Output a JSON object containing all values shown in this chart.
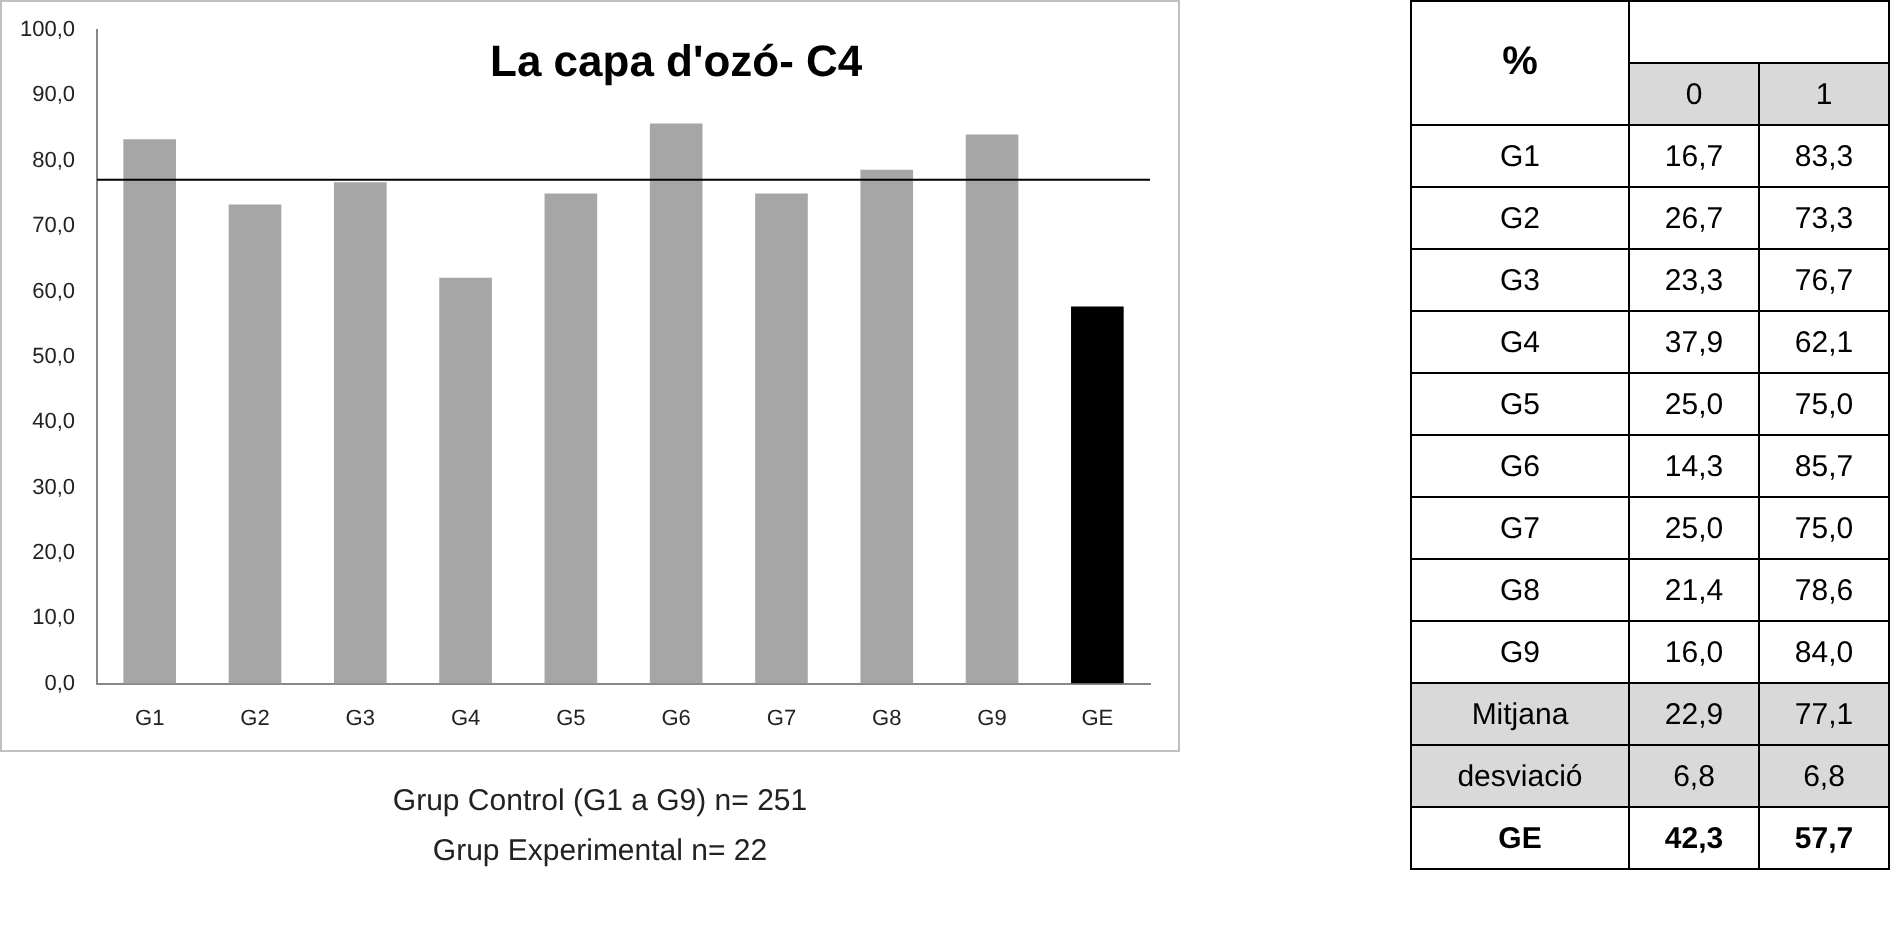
{
  "chart_data": [
    {
      "type": "bar",
      "title": "La capa d'ozó- C4",
      "categories": [
        "G1",
        "G2",
        "G3",
        "G4",
        "G5",
        "G6",
        "G7",
        "G8",
        "G9",
        "GE"
      ],
      "values": [
        83.3,
        73.3,
        76.7,
        62.1,
        75.0,
        85.7,
        75.0,
        78.6,
        84.0,
        57.7
      ],
      "colors": [
        "#a6a6a6",
        "#a6a6a6",
        "#a6a6a6",
        "#a6a6a6",
        "#a6a6a6",
        "#a6a6a6",
        "#a6a6a6",
        "#a6a6a6",
        "#a6a6a6",
        "#000000"
      ],
      "ylim": [
        0,
        100
      ],
      "yticks": [
        {
          "value": 0,
          "label": "0,0"
        },
        {
          "value": 10,
          "label": "10,0"
        },
        {
          "value": 20,
          "label": "20,0"
        },
        {
          "value": 30,
          "label": "30,0"
        },
        {
          "value": 40,
          "label": "40,0"
        },
        {
          "value": 50,
          "label": "50,0"
        },
        {
          "value": 60,
          "label": "60,0"
        },
        {
          "value": 70,
          "label": "70,0"
        },
        {
          "value": 80,
          "label": "80,0"
        },
        {
          "value": 90,
          "label": "90,0"
        },
        {
          "value": 100,
          "label": "100,0"
        }
      ],
      "ref_lines": [
        {
          "axis": "y",
          "value": 77.1,
          "color": "#000000"
        }
      ],
      "legend": false,
      "annotations": [
        "Grup Control (G1 a G9)  n= 251",
        "Grup Experimental   n= 22"
      ]
    },
    {
      "type": "other",
      "title": "%",
      "categories": [
        "G1",
        "G2",
        "G3",
        "G4",
        "G5",
        "G6",
        "G7",
        "G8",
        "G9",
        "Mitjana",
        "desviació",
        "GE"
      ],
      "series": [
        {
          "name": "0",
          "values": [
            16.7,
            26.7,
            23.3,
            37.9,
            25.0,
            14.3,
            25.0,
            21.4,
            16.0,
            22.9,
            6.8,
            42.3
          ],
          "value_labels": [
            "16,7",
            "26,7",
            "23,3",
            "37,9",
            "25,0",
            "14,3",
            "25,0",
            "21,4",
            "16,0",
            "22,9",
            "6,8",
            "42,3"
          ]
        },
        {
          "name": "1",
          "values": [
            83.3,
            73.3,
            76.7,
            62.1,
            75.0,
            85.7,
            75.0,
            78.6,
            84.0,
            77.1,
            6.8,
            57.7
          ],
          "value_labels": [
            "83,3",
            "73,3",
            "76,7",
            "62,1",
            "75,0",
            "85,7",
            "75,0",
            "78,6",
            "84,0",
            "77,1",
            "6,8",
            "57,7"
          ]
        }
      ],
      "data_labels": true
    }
  ]
}
